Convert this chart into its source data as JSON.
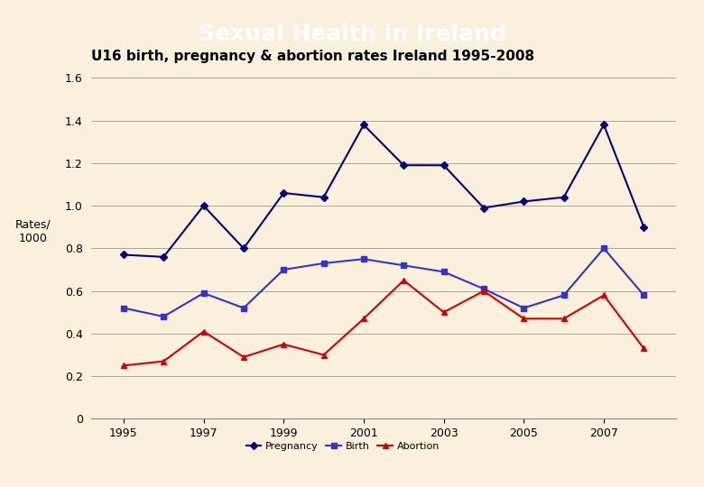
{
  "title": "Sexual Health in Ireland",
  "subtitle": "U16 birth, pregnancy & abortion rates Ireland 1995-2008",
  "title_bg": "#4169E1",
  "title_color": "white",
  "background_color": "#FAF0DC",
  "ylabel": "Rates/\n1000",
  "years": [
    1995,
    1996,
    1997,
    1998,
    1999,
    2000,
    2001,
    2002,
    2003,
    2004,
    2005,
    2006,
    2007,
    2008
  ],
  "pregnancy": [
    0.77,
    0.76,
    1.0,
    0.8,
    1.06,
    1.04,
    1.38,
    1.19,
    1.19,
    0.99,
    1.02,
    1.04,
    1.38,
    0.9
  ],
  "birth": [
    0.52,
    0.48,
    0.59,
    0.52,
    0.7,
    0.73,
    0.75,
    0.72,
    0.69,
    0.61,
    0.52,
    0.58,
    0.8,
    0.58
  ],
  "abortion": [
    0.25,
    0.27,
    0.41,
    0.29,
    0.35,
    0.3,
    0.47,
    0.65,
    0.5,
    0.6,
    0.47,
    0.47,
    0.58,
    0.33
  ],
  "pregnancy_color": "#000080",
  "birth_color": "#3333CC",
  "abortion_color": "#CC0000",
  "ylim": [
    0,
    1.6
  ],
  "yticks": [
    0,
    0.2,
    0.4,
    0.6,
    0.8,
    1.0,
    1.2,
    1.4,
    1.6
  ],
  "xticks": [
    1995,
    1997,
    1999,
    2001,
    2003,
    2005,
    2007
  ],
  "legend_labels": [
    "Pregnancy",
    "Birth",
    "Abortion"
  ],
  "marker_pregnancy": "D",
  "marker_birth": "s",
  "marker_abortion": "^"
}
